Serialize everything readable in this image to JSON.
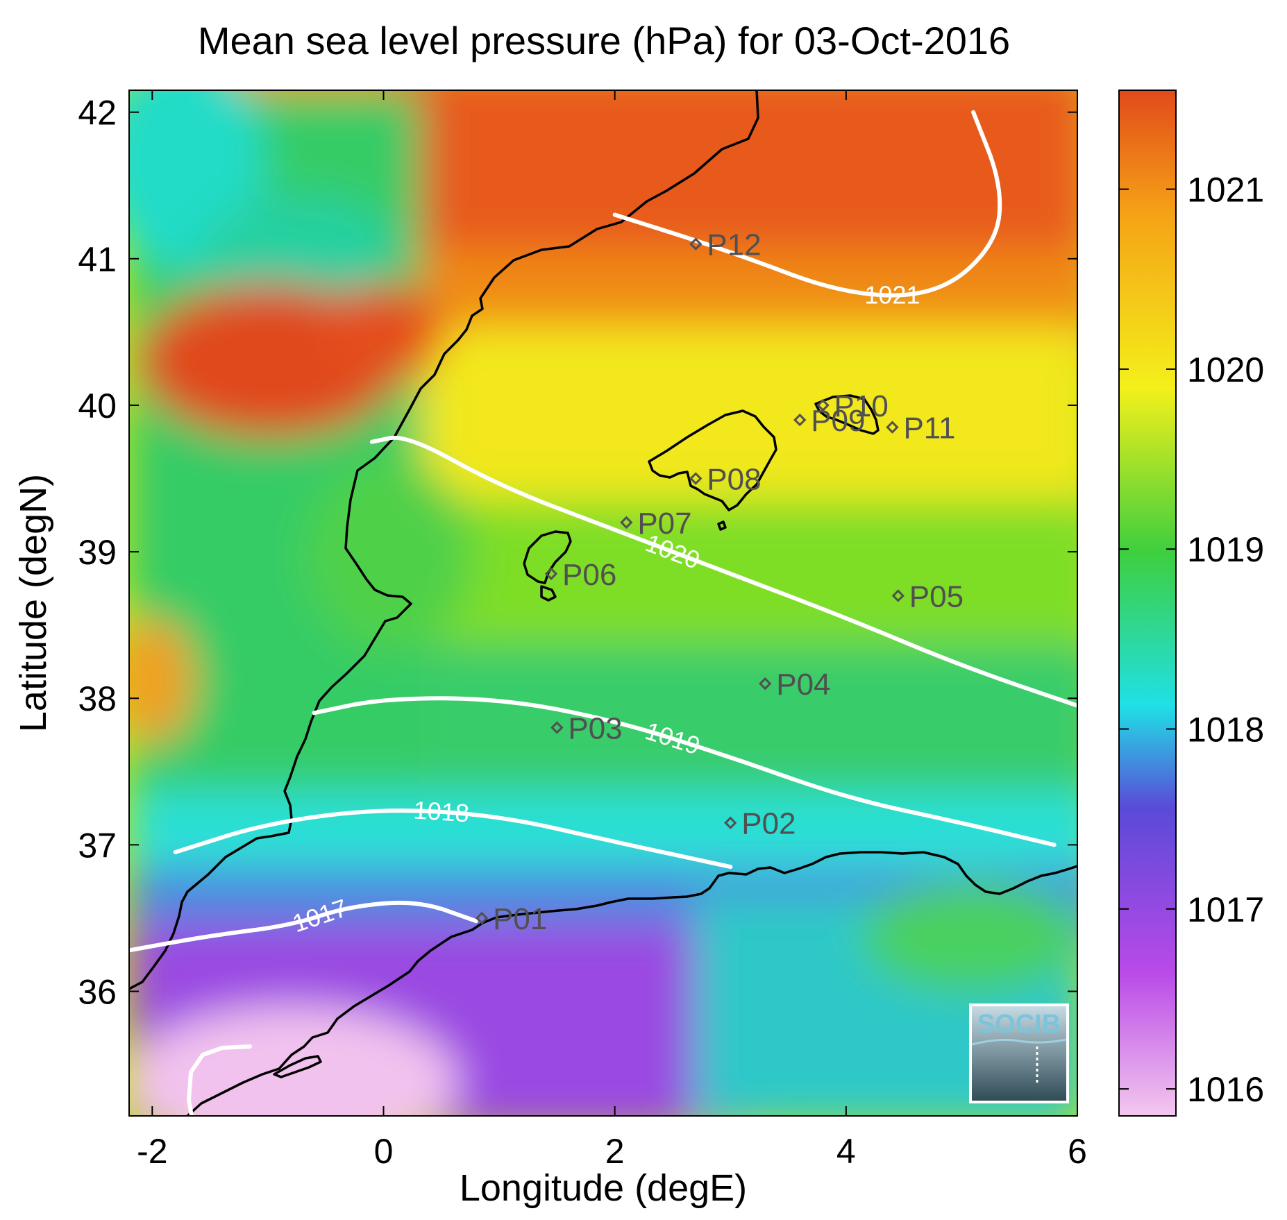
{
  "chart_data": {
    "type": "heatmap",
    "title": "Mean sea level pressure (hPa) for 03-Oct-2016",
    "xlabel": "Longitude (degE)",
    "ylabel": "Latitude (degN)",
    "xlim": [
      -2.2,
      6.0
    ],
    "ylim": [
      35.15,
      42.15
    ],
    "x_ticks": [
      -2,
      0,
      2,
      4,
      6
    ],
    "y_ticks": [
      36,
      37,
      38,
      39,
      40,
      41,
      42
    ],
    "colorbar": {
      "range": [
        1015.85,
        1021.55
      ],
      "ticks": [
        1016,
        1017,
        1018,
        1019,
        1020,
        1021
      ],
      "colors": [
        "#f4c8ee",
        "#b94ae8",
        "#5a4ad8",
        "#20e0e6",
        "#3ecf3e",
        "#f4f01a",
        "#f5a216",
        "#e24a1a"
      ]
    },
    "contours": [
      {
        "level": 1017,
        "label": "1017",
        "points": [
          [
            -2.2,
            36.28
          ],
          [
            -1.5,
            36.38
          ],
          [
            -0.8,
            36.45
          ],
          [
            -0.3,
            36.58
          ],
          [
            0.3,
            36.62
          ],
          [
            0.8,
            36.48
          ]
        ]
      },
      {
        "level": 1018,
        "label": "1018",
        "points": [
          [
            -1.8,
            36.95
          ],
          [
            -1.0,
            37.15
          ],
          [
            0.0,
            37.25
          ],
          [
            1.0,
            37.2
          ],
          [
            2.0,
            37.02
          ],
          [
            3.0,
            36.85
          ]
        ]
      },
      {
        "level": 1019,
        "label": "1019",
        "points": [
          [
            -0.6,
            37.9
          ],
          [
            0.0,
            38.0
          ],
          [
            1.0,
            38.0
          ],
          [
            2.0,
            37.85
          ],
          [
            3.0,
            37.6
          ],
          [
            4.0,
            37.32
          ],
          [
            5.0,
            37.15
          ],
          [
            5.8,
            37.0
          ]
        ]
      },
      {
        "level": 1020,
        "label": "1020",
        "points": [
          [
            -0.1,
            39.75
          ],
          [
            0.2,
            39.8
          ],
          [
            1.0,
            39.45
          ],
          [
            2.0,
            39.15
          ],
          [
            3.0,
            38.85
          ],
          [
            4.0,
            38.55
          ],
          [
            5.0,
            38.22
          ],
          [
            6.0,
            37.95
          ]
        ]
      },
      {
        "level": 1021,
        "label": "1021",
        "points": [
          [
            2.0,
            41.3
          ],
          [
            3.0,
            41.05
          ],
          [
            4.0,
            40.75
          ],
          [
            4.8,
            40.75
          ],
          [
            5.3,
            41.1
          ],
          [
            5.35,
            41.5
          ],
          [
            5.1,
            42.0
          ]
        ]
      }
    ],
    "stations": [
      {
        "name": "P01",
        "lon": 0.85,
        "lat": 36.5
      },
      {
        "name": "P02",
        "lon": 3.0,
        "lat": 37.15
      },
      {
        "name": "P03",
        "lon": 1.5,
        "lat": 37.8
      },
      {
        "name": "P04",
        "lon": 3.3,
        "lat": 38.1
      },
      {
        "name": "P05",
        "lon": 4.45,
        "lat": 38.7
      },
      {
        "name": "P06",
        "lon": 1.45,
        "lat": 38.85
      },
      {
        "name": "P07",
        "lon": 2.1,
        "lat": 39.2
      },
      {
        "name": "P08",
        "lon": 2.7,
        "lat": 39.5
      },
      {
        "name": "P09",
        "lon": 3.6,
        "lat": 39.9
      },
      {
        "name": "P10",
        "lon": 3.8,
        "lat": 40.0
      },
      {
        "name": "P11",
        "lon": 4.4,
        "lat": 39.85
      },
      {
        "name": "P12",
        "lon": 2.7,
        "lat": 41.1
      }
    ],
    "grid": false,
    "legend": "colorbar-right"
  },
  "logo": {
    "text": "SOCIB"
  }
}
